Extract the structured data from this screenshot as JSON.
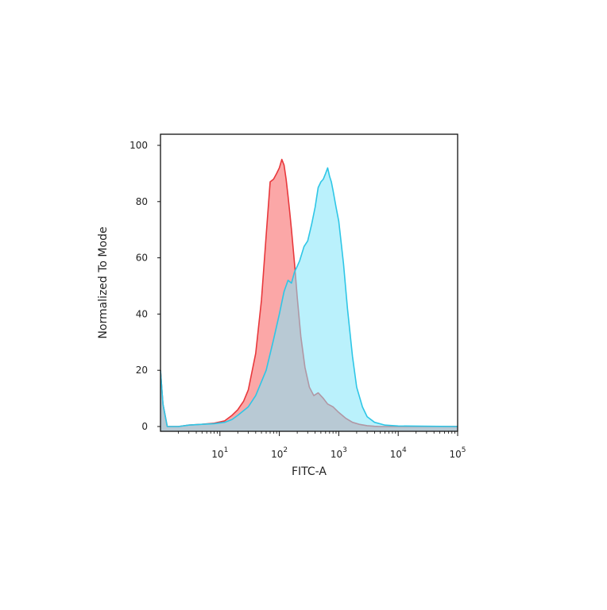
{
  "chart_data": {
    "type": "area",
    "xlabel": "FITC-A",
    "ylabel": "Normalized To Mode",
    "xscale": "log",
    "xlim": [
      1,
      100000
    ],
    "ylim": [
      0,
      100
    ],
    "grid": false,
    "legend": "none",
    "y_ticks": [
      0,
      20,
      40,
      60,
      80,
      100
    ],
    "x_ticks": [
      {
        "base": "10",
        "exp": "1",
        "value": 10
      },
      {
        "base": "10",
        "exp": "2",
        "value": 100
      },
      {
        "base": "10",
        "exp": "3",
        "value": 1000
      },
      {
        "base": "10",
        "exp": "4",
        "value": 10000
      },
      {
        "base": "10",
        "exp": "5",
        "value": 100000
      }
    ],
    "series": [
      {
        "color": "#e8383c",
        "fill": "#fa8a8a",
        "x": [
          1,
          1.1,
          1.3,
          2,
          3,
          5,
          8,
          12,
          16,
          20,
          25,
          30,
          40,
          50,
          60,
          70,
          80,
          90,
          100,
          110,
          120,
          130,
          140,
          150,
          160,
          180,
          200,
          230,
          270,
          320,
          380,
          450,
          550,
          650,
          800,
          1000,
          1300,
          1700,
          2200,
          3000,
          4000,
          5000,
          100000
        ],
        "y": [
          20,
          8,
          0,
          0,
          0.5,
          0.8,
          1.2,
          2,
          4,
          6,
          9,
          13,
          26,
          45,
          68,
          87,
          88,
          90,
          92,
          95,
          93,
          88,
          82,
          76,
          70,
          58,
          46,
          32,
          21,
          14,
          11,
          12,
          10,
          8,
          7,
          5,
          3,
          1.5,
          0.8,
          0.3,
          0.1,
          0,
          0
        ]
      },
      {
        "color": "#2ec6e6",
        "fill": "#82e6fa",
        "x": [
          1,
          1.1,
          1.3,
          2,
          3,
          5,
          8,
          12,
          16,
          20,
          30,
          40,
          60,
          80,
          100,
          120,
          140,
          160,
          180,
          200,
          220,
          260,
          300,
          350,
          400,
          450,
          500,
          550,
          600,
          650,
          700,
          750,
          800,
          900,
          1000,
          1200,
          1400,
          1700,
          2000,
          2500,
          3000,
          4000,
          6000,
          10000,
          100000
        ],
        "y": [
          20,
          8,
          0,
          0,
          0.5,
          0.8,
          1,
          1.5,
          2.5,
          4,
          7,
          11,
          20,
          31,
          40,
          48,
          52,
          51,
          55,
          57,
          59,
          64,
          66,
          72,
          78,
          85,
          87,
          88,
          90,
          92,
          89,
          87,
          84,
          78,
          73,
          58,
          42,
          25,
          14,
          7,
          3.5,
          1.5,
          0.5,
          0.2,
          0
        ]
      }
    ]
  }
}
